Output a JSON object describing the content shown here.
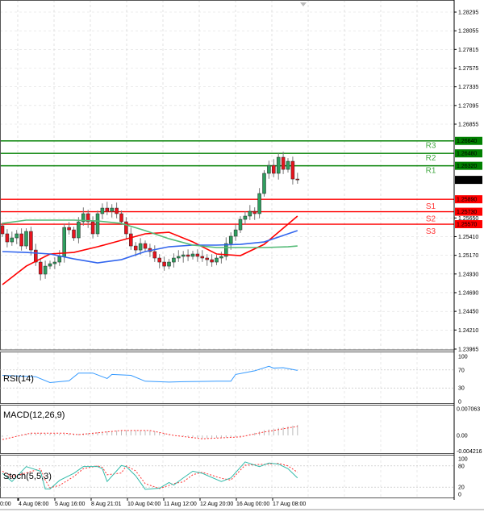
{
  "chart_data": {
    "type": "candlestick",
    "symbol_timeframe": "",
    "price_axis": {
      "ticks": [
        1.28295,
        1.28055,
        1.27815,
        1.27575,
        1.27335,
        1.27095,
        1.26855,
        1.2565,
        1.2541,
        1.2517,
        1.2493,
        1.2469,
        1.2445,
        1.2421,
        1.23965
      ],
      "tick_labels": [
        "1.28295",
        "1.28055",
        "1.27815",
        "1.27575",
        "1.27335",
        "1.27095",
        "1.26855",
        "1.25650",
        "1.25410",
        "1.25170",
        "1.24930",
        "1.24690",
        "1.24450",
        "1.24210",
        "1.23965"
      ],
      "range": [
        1.23965,
        1.28295
      ]
    },
    "current_price": {
      "value": 1.26139,
      "label": "1.26139"
    },
    "pivot_levels": [
      {
        "name": "R3",
        "value": 1.2664,
        "label": "1.26640",
        "color": "#008000"
      },
      {
        "name": "R2",
        "value": 1.2648,
        "label": "1.26480",
        "color": "#008000"
      },
      {
        "name": "R1",
        "value": 1.2632,
        "label": "1.26320",
        "color": "#008000"
      },
      {
        "name": "S1",
        "value": 1.2589,
        "label": "1.25890",
        "color": "#ff0000"
      },
      {
        "name": "S2",
        "value": 1.2573,
        "label": "1.25730",
        "color": "#ff0000"
      },
      {
        "name": "S3",
        "value": 1.2557,
        "label": "1.25570",
        "color": "#ff0000"
      }
    ],
    "closes": [
      1.25446,
      1.25342,
      1.25394,
      1.25446,
      1.2529,
      1.25477,
      1.25238,
      1.25083,
      1.24928,
      1.25031,
      1.25062,
      1.25083,
      1.25156,
      1.25528,
      1.25497,
      1.25394,
      1.25601,
      1.25705,
      1.25601,
      1.25446,
      1.25705,
      1.25777,
      1.25736,
      1.25777,
      1.25705,
      1.25601,
      1.25446,
      1.2529,
      1.25238,
      1.25321,
      1.25259,
      1.25218,
      1.25135,
      1.25083,
      1.25031,
      1.25083,
      1.25135,
      1.25156,
      1.25176,
      1.25156,
      1.25187,
      1.25156,
      1.25135,
      1.25114,
      1.25083,
      1.25135,
      1.25156,
      1.25321,
      1.25415,
      1.25497,
      1.25632,
      1.25674,
      1.25736,
      1.25705,
      1.25964,
      1.26223,
      1.26326,
      1.26223,
      1.2643,
      1.26274,
      1.26378,
      1.2615,
      1.26139
    ],
    "first_open": 1.2555,
    "moving_averages": {
      "sample_index": [
        0,
        5,
        10,
        15,
        20,
        25,
        30,
        35,
        40,
        45,
        50,
        55,
        60,
        62
      ],
      "series": [
        {
          "color": "#ff0000",
          "values": [
            1.24793,
            1.25031,
            1.25187,
            1.25207,
            1.2528,
            1.25363,
            1.25446,
            1.25466,
            1.25342,
            1.25187,
            1.25166,
            1.25311,
            1.2557,
            1.25674
          ]
        },
        {
          "color": "#3366ee",
          "values": [
            1.25218,
            1.25207,
            1.25187,
            1.25124,
            1.25073,
            1.25114,
            1.25218,
            1.2528,
            1.25301,
            1.25301,
            1.25311,
            1.25342,
            1.25446,
            1.25487
          ]
        },
        {
          "color": "#55bb77",
          "values": [
            1.2558,
            1.25622,
            1.25622,
            1.25622,
            1.25611,
            1.2558,
            1.25487,
            1.25383,
            1.25301,
            1.2527,
            1.2527,
            1.2527,
            1.2528,
            1.2529
          ]
        }
      ]
    },
    "x_tick_labels": [
      "0:00",
      "4 Aug 08:00",
      "5 Aug 16:00",
      "8 Aug 21:01",
      "10 Aug 04:00",
      "11 Aug 12:00",
      "12 Aug 20:00",
      "16 Aug 00:00",
      "17 Aug 08:00"
    ],
    "rsi": {
      "label": "RSI(14)",
      "color": "#3399ff",
      "ticks": [
        "100",
        "70",
        "30",
        "0"
      ],
      "index": [
        0,
        7,
        10,
        14,
        16,
        19,
        22,
        23,
        27,
        30,
        35,
        38,
        45,
        48,
        49,
        53,
        56,
        57,
        59,
        62
      ],
      "values": [
        58,
        55,
        42,
        46,
        63,
        63,
        51,
        60,
        58,
        45,
        43,
        44,
        45,
        45,
        60,
        68,
        78,
        74,
        75,
        69
      ]
    },
    "macd": {
      "label": "MACD(12,26,9)",
      "ticks": [
        "0.007063",
        "0.00",
        "-0.004216"
      ],
      "range": [
        -0.004216,
        0.007063
      ],
      "index": [
        0,
        6,
        13,
        16,
        25,
        31,
        36,
        42,
        50,
        55,
        62
      ],
      "histogram": [
        -0.0004,
        0.0006,
        0.0004,
        0.0004,
        0.0014,
        0.0013,
        0.0,
        -0.0008,
        -0.0004,
        0.0014,
        0.0028
      ],
      "signal": [
        -0.0011,
        0.0006,
        0.0006,
        0.0002,
        0.0013,
        0.0013,
        0.0,
        -0.0009,
        -0.0004,
        0.0009,
        0.0024
      ]
    },
    "stochastic": {
      "label": "Stoch(5,5,3)",
      "ticks": [
        "100",
        "80",
        "20",
        "0"
      ],
      "index": [
        0,
        2,
        5,
        8,
        9,
        10,
        12,
        15,
        17,
        20,
        21,
        22,
        25,
        26,
        28,
        30,
        33,
        35,
        36,
        38,
        40,
        42,
        46,
        48,
        51,
        54,
        56,
        58,
        60,
        62
      ],
      "main": [
        59,
        36,
        78,
        65,
        15,
        15,
        39,
        59,
        78,
        78,
        72,
        36,
        81,
        78,
        52,
        14,
        17,
        33,
        26,
        46,
        65,
        59,
        36,
        46,
        91,
        78,
        88,
        85,
        72,
        46
      ],
      "signal": [
        65,
        50,
        60,
        72,
        40,
        18,
        25,
        50,
        72,
        80,
        76,
        55,
        60,
        80,
        66,
        30,
        16,
        25,
        30,
        35,
        55,
        62,
        45,
        40,
        82,
        84,
        85,
        87,
        80,
        62
      ],
      "main_color": "#33bbaa",
      "signal_color": "#ff3333"
    }
  }
}
